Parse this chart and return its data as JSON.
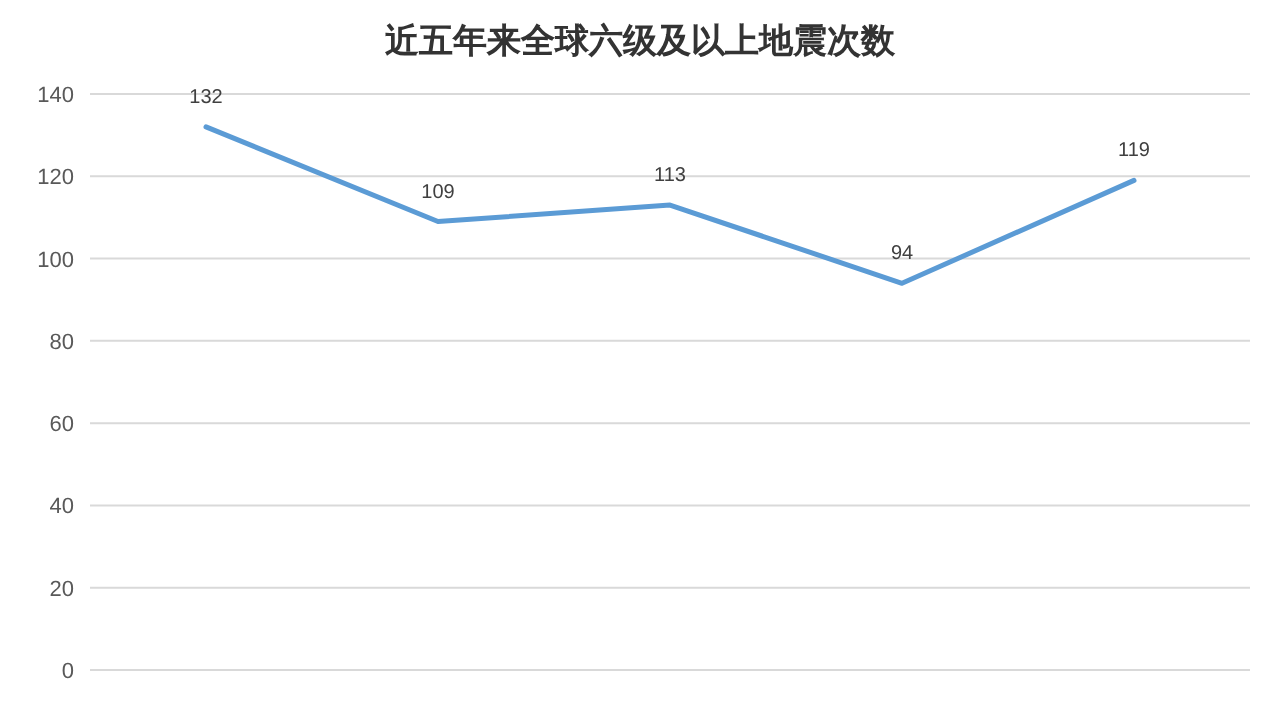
{
  "chart_data": {
    "type": "line",
    "title": "近五年来全球六级及以上地震次数",
    "categories": [
      null,
      null,
      null,
      null,
      null
    ],
    "series": [
      {
        "color": "#5b9bd5",
        "values": [
          132,
          109,
          113,
          94,
          119
        ]
      }
    ],
    "ylim": [
      0,
      140
    ],
    "yticks": [
      0,
      20,
      40,
      60,
      80,
      100,
      120,
      140
    ],
    "grid": "y",
    "data_labels": true,
    "marker": "none",
    "line_style": "solid"
  }
}
